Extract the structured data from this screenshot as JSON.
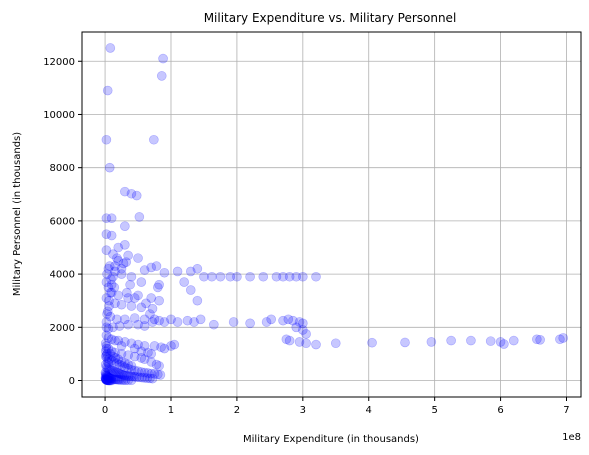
{
  "chart_data": {
    "type": "scatter",
    "title": "Military Expenditure vs. Military Personnel",
    "xlabel": "Military Expenditure (in thousands)",
    "ylabel": "Military Personnel (in thousands)",
    "x_offset_label": "1e8",
    "xlim": [
      -0.35,
      7.22
    ],
    "ylim": [
      -620,
      13100
    ],
    "x_unit_note": "x values expressed in units of 1e8",
    "xticks": [
      0,
      1,
      2,
      3,
      4,
      5,
      6,
      7
    ],
    "xtick_labels": [
      "0",
      "1",
      "2",
      "3",
      "4",
      "5",
      "6",
      "7"
    ],
    "yticks": [
      0,
      2000,
      4000,
      6000,
      8000,
      10000,
      12000
    ],
    "ytick_labels": [
      "0",
      "2000",
      "4000",
      "6000",
      "8000",
      "10000",
      "12000"
    ],
    "grid": true,
    "marker_color": "#0000ff",
    "marker_alpha": 0.22,
    "series": [
      {
        "points": [
          [
            0.08,
            12500
          ],
          [
            0.88,
            12100
          ],
          [
            0.86,
            11450
          ],
          [
            0.04,
            10900
          ],
          [
            0.02,
            9050
          ],
          [
            0.74,
            9050
          ],
          [
            0.07,
            8000
          ],
          [
            0.3,
            7100
          ],
          [
            0.4,
            7020
          ],
          [
            0.48,
            6950
          ],
          [
            0.02,
            6100
          ],
          [
            0.1,
            6100
          ],
          [
            0.52,
            6150
          ],
          [
            0.3,
            5800
          ],
          [
            0.02,
            5500
          ],
          [
            0.1,
            5450
          ],
          [
            0.3,
            5100
          ],
          [
            0.2,
            5000
          ],
          [
            0.02,
            4900
          ],
          [
            0.12,
            4750
          ],
          [
            0.35,
            4700
          ],
          [
            0.5,
            4600
          ],
          [
            0.2,
            4500
          ],
          [
            0.32,
            4450
          ],
          [
            0.6,
            4150
          ],
          [
            0.7,
            4250
          ],
          [
            0.78,
            4300
          ],
          [
            0.9,
            4050
          ],
          [
            1.1,
            4100
          ],
          [
            1.3,
            4100
          ],
          [
            1.4,
            4200
          ],
          [
            1.2,
            3700
          ],
          [
            1.3,
            3400
          ],
          [
            1.4,
            3000
          ],
          [
            1.5,
            3900
          ],
          [
            1.62,
            3900
          ],
          [
            1.75,
            3900
          ],
          [
            1.9,
            3900
          ],
          [
            2.0,
            3900
          ],
          [
            2.2,
            3900
          ],
          [
            2.4,
            3900
          ],
          [
            2.6,
            3900
          ],
          [
            2.7,
            3900
          ],
          [
            2.8,
            3900
          ],
          [
            2.9,
            3900
          ],
          [
            3.0,
            3900
          ],
          [
            3.2,
            3900
          ],
          [
            0.05,
            4200
          ],
          [
            0.15,
            4100
          ],
          [
            0.25,
            4000
          ],
          [
            0.4,
            3900
          ],
          [
            0.55,
            3700
          ],
          [
            0.8,
            3500
          ],
          [
            0.82,
            3600
          ],
          [
            0.02,
            3700
          ],
          [
            0.05,
            3500
          ],
          [
            0.1,
            3300
          ],
          [
            0.2,
            3200
          ],
          [
            0.35,
            3100
          ],
          [
            0.5,
            3200
          ],
          [
            0.7,
            3100
          ],
          [
            0.82,
            3000
          ],
          [
            0.02,
            3100
          ],
          [
            0.06,
            3000
          ],
          [
            0.15,
            2900
          ],
          [
            0.25,
            2850
          ],
          [
            0.4,
            2800
          ],
          [
            0.55,
            2750
          ],
          [
            0.72,
            2700
          ],
          [
            0.03,
            2500
          ],
          [
            0.08,
            2400
          ],
          [
            0.18,
            2300
          ],
          [
            0.3,
            2300
          ],
          [
            0.45,
            2350
          ],
          [
            0.6,
            2300
          ],
          [
            0.75,
            2300
          ],
          [
            0.82,
            2250
          ],
          [
            0.9,
            2200
          ],
          [
            1.0,
            2300
          ],
          [
            1.1,
            2200
          ],
          [
            1.25,
            2250
          ],
          [
            1.35,
            2200
          ],
          [
            1.45,
            2300
          ],
          [
            1.65,
            2100
          ],
          [
            1.95,
            2200
          ],
          [
            2.2,
            2150
          ],
          [
            2.45,
            2200
          ],
          [
            2.52,
            2300
          ],
          [
            2.7,
            2250
          ],
          [
            2.78,
            2300
          ],
          [
            2.85,
            2250
          ],
          [
            2.95,
            2200
          ],
          [
            3.0,
            2150
          ],
          [
            2.9,
            2000
          ],
          [
            3.0,
            1900
          ],
          [
            3.05,
            1750
          ],
          [
            2.75,
            1550
          ],
          [
            2.8,
            1500
          ],
          [
            2.95,
            1450
          ],
          [
            3.05,
            1400
          ],
          [
            3.2,
            1350
          ],
          [
            3.5,
            1400
          ],
          [
            4.05,
            1420
          ],
          [
            4.55,
            1430
          ],
          [
            4.95,
            1450
          ],
          [
            5.25,
            1500
          ],
          [
            5.55,
            1500
          ],
          [
            5.85,
            1480
          ],
          [
            6.0,
            1450
          ],
          [
            6.05,
            1370
          ],
          [
            6.2,
            1500
          ],
          [
            6.55,
            1550
          ],
          [
            6.6,
            1530
          ],
          [
            6.9,
            1550
          ],
          [
            6.95,
            1600
          ],
          [
            0.02,
            2000
          ],
          [
            0.05,
            1950
          ],
          [
            0.12,
            2000
          ],
          [
            0.22,
            2050
          ],
          [
            0.35,
            2100
          ],
          [
            0.5,
            2100
          ],
          [
            0.6,
            2050
          ],
          [
            0.02,
            1700
          ],
          [
            0.05,
            1600
          ],
          [
            0.1,
            1550
          ],
          [
            0.2,
            1500
          ],
          [
            0.3,
            1450
          ],
          [
            0.4,
            1400
          ],
          [
            0.5,
            1350
          ],
          [
            0.6,
            1300
          ],
          [
            0.75,
            1300
          ],
          [
            0.85,
            1250
          ],
          [
            0.9,
            1200
          ],
          [
            1.0,
            1300
          ],
          [
            1.05,
            1350
          ],
          [
            0.02,
            1300
          ],
          [
            0.05,
            1200
          ],
          [
            0.1,
            1100
          ],
          [
            0.15,
            1050
          ],
          [
            0.25,
            1000
          ],
          [
            0.35,
            950
          ],
          [
            0.45,
            900
          ],
          [
            0.55,
            850
          ],
          [
            0.6,
            800
          ],
          [
            0.7,
            700
          ],
          [
            0.78,
            600
          ],
          [
            0.82,
            550
          ],
          [
            0.01,
            900
          ],
          [
            0.03,
            850
          ],
          [
            0.06,
            800
          ],
          [
            0.1,
            750
          ],
          [
            0.14,
            700
          ],
          [
            0.18,
            650
          ],
          [
            0.22,
            600
          ],
          [
            0.26,
            550
          ],
          [
            0.3,
            500
          ],
          [
            0.35,
            450
          ],
          [
            0.4,
            400
          ],
          [
            0.45,
            380
          ],
          [
            0.5,
            350
          ],
          [
            0.55,
            320
          ],
          [
            0.6,
            300
          ],
          [
            0.65,
            280
          ],
          [
            0.7,
            260
          ],
          [
            0.75,
            250
          ],
          [
            0.8,
            230
          ],
          [
            0.84,
            210
          ],
          [
            0.01,
            600
          ],
          [
            0.02,
            500
          ],
          [
            0.04,
            450
          ],
          [
            0.06,
            420
          ],
          [
            0.08,
            400
          ],
          [
            0.1,
            380
          ],
          [
            0.12,
            350
          ],
          [
            0.14,
            330
          ],
          [
            0.16,
            310
          ],
          [
            0.18,
            300
          ],
          [
            0.2,
            280
          ],
          [
            0.22,
            260
          ],
          [
            0.24,
            240
          ],
          [
            0.26,
            220
          ],
          [
            0.28,
            200
          ],
          [
            0.3,
            190
          ],
          [
            0.33,
            180
          ],
          [
            0.36,
            170
          ],
          [
            0.39,
            160
          ],
          [
            0.42,
            150
          ],
          [
            0.45,
            140
          ],
          [
            0.48,
            130
          ],
          [
            0.52,
            120
          ],
          [
            0.56,
            110
          ],
          [
            0.6,
            100
          ],
          [
            0.64,
            90
          ],
          [
            0.68,
            80
          ],
          [
            0.72,
            70
          ],
          [
            0.005,
            300
          ],
          [
            0.01,
            250
          ],
          [
            0.015,
            200
          ],
          [
            0.02,
            180
          ],
          [
            0.03,
            160
          ],
          [
            0.04,
            140
          ],
          [
            0.05,
            120
          ],
          [
            0.06,
            100
          ],
          [
            0.07,
            90
          ],
          [
            0.08,
            80
          ],
          [
            0.09,
            70
          ],
          [
            0.1,
            60
          ],
          [
            0.12,
            50
          ],
          [
            0.14,
            45
          ],
          [
            0.16,
            40
          ],
          [
            0.18,
            35
          ],
          [
            0.2,
            30
          ],
          [
            0.22,
            25
          ],
          [
            0.25,
            20
          ],
          [
            0.28,
            15
          ],
          [
            0.31,
            12
          ],
          [
            0.35,
            10
          ],
          [
            0.4,
            8
          ],
          [
            0.005,
            100
          ],
          [
            0.008,
            80
          ],
          [
            0.01,
            60
          ],
          [
            0.012,
            50
          ],
          [
            0.015,
            40
          ],
          [
            0.018,
            30
          ],
          [
            0.02,
            20
          ],
          [
            0.025,
            15
          ],
          [
            0.03,
            10
          ],
          [
            0.035,
            8
          ],
          [
            0.04,
            5
          ],
          [
            0.05,
            3
          ],
          [
            0.06,
            2
          ],
          [
            0.07,
            1
          ],
          [
            0.08,
            0
          ],
          [
            0.1,
            0
          ],
          [
            0.01,
            1400
          ],
          [
            0.02,
            1200
          ],
          [
            0.03,
            1000
          ],
          [
            0.01,
            1100
          ],
          [
            0.02,
            950
          ],
          [
            0.04,
            700
          ],
          [
            0.05,
            650
          ],
          [
            0.08,
            1000
          ],
          [
            0.12,
            900
          ],
          [
            0.16,
            850
          ],
          [
            0.2,
            800
          ],
          [
            0.25,
            700
          ],
          [
            0.3,
            650
          ],
          [
            0.35,
            600
          ],
          [
            0.4,
            550
          ],
          [
            0.15,
            1500
          ],
          [
            0.25,
            1300
          ],
          [
            0.45,
            1200
          ],
          [
            0.55,
            1100
          ],
          [
            0.65,
            1050
          ],
          [
            0.7,
            1000
          ],
          [
            0.02,
            2200
          ],
          [
            0.04,
            2600
          ],
          [
            0.06,
            2800
          ],
          [
            0.08,
            3300
          ],
          [
            0.1,
            3600
          ],
          [
            0.12,
            3900
          ],
          [
            0.15,
            4300
          ],
          [
            0.18,
            4600
          ],
          [
            0.25,
            4200
          ],
          [
            0.28,
            4400
          ],
          [
            0.03,
            4000
          ],
          [
            0.07,
            4300
          ],
          [
            0.09,
            3800
          ],
          [
            0.14,
            3500
          ],
          [
            0.33,
            3300
          ],
          [
            0.38,
            3600
          ],
          [
            0.45,
            3100
          ],
          [
            0.62,
            2900
          ],
          [
            0.68,
            2500
          ],
          [
            0.72,
            2200
          ]
        ]
      }
    ]
  }
}
